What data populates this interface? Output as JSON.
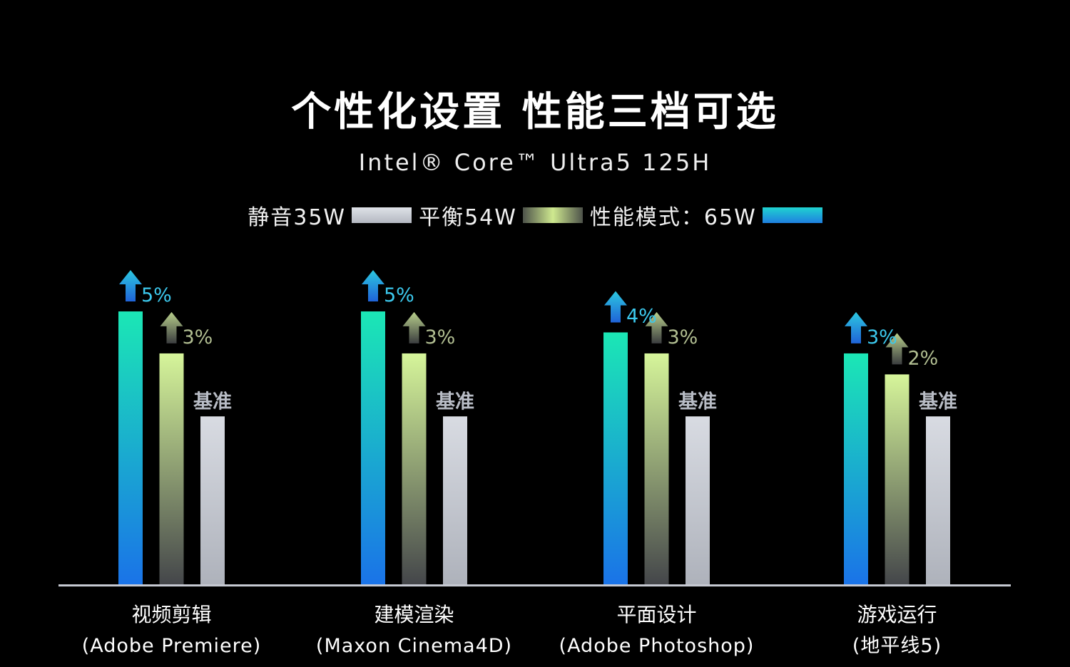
{
  "chart_data": {
    "type": "bar",
    "title": "个性化设置 性能三档可选",
    "subtitle": "Intel® Core™ Ultra5 125H",
    "legend_position": "top",
    "categories": [
      {
        "name": "视频剪辑",
        "app": "(Adobe Premiere)"
      },
      {
        "name": "建模渲染",
        "app": "(Maxon Cinema4D)"
      },
      {
        "name": "平面设计",
        "app": "(Adobe Photoshop)"
      },
      {
        "name": "游戏运行",
        "app": "(地平线5)"
      }
    ],
    "series": [
      {
        "name": "性能模式：65W",
        "values": [
          105,
          105,
          104,
          103
        ],
        "labels": [
          "5%",
          "5%",
          "4%",
          "3%"
        ],
        "color_top": "#1be7b5",
        "color_bottom": "#1a73e8",
        "arrow": "#2cc8e0",
        "label_color": "#3cc9ee"
      },
      {
        "name": "平衡54W",
        "values": [
          103,
          103,
          103,
          102
        ],
        "labels": [
          "3%",
          "3%",
          "3%",
          "2%"
        ],
        "color_top": "#d6f59a",
        "color_bottom": "#44464a",
        "arrow": "#b8cf8c",
        "label_color": "#b2bf92"
      },
      {
        "name": "静音35W",
        "values": [
          100,
          100,
          100,
          100
        ],
        "labels": [
          "基准",
          "基准",
          "基准",
          "基准"
        ],
        "color_top": "#d8dbe2",
        "color_bottom": "#aeb2bb",
        "label_color": "#b8bcc5"
      }
    ],
    "legend_order": [
      2,
      1,
      0
    ],
    "ylim": [
      92,
      106
    ],
    "grid": false
  }
}
